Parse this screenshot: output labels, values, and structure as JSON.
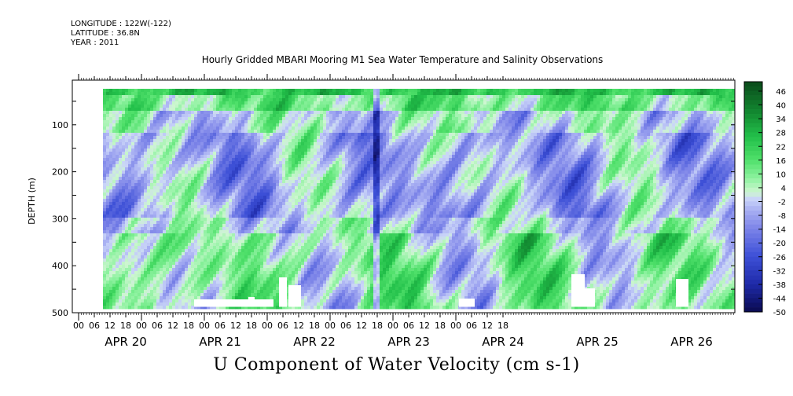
{
  "header": {
    "longitude": "LONGITUDE : 122W(-122)",
    "latitude": "LATITUDE : 36.8N",
    "year": "YEAR : 2011",
    "title": "Hourly Gridded MBARI Mooring M1 Sea Water Temperature and Salinity Observations"
  },
  "chart_data": {
    "type": "heatmap",
    "title": "Hourly Gridded MBARI Mooring M1 Sea Water Temperature and Salinity Observations",
    "xlabel": "U Component of Water Velocity (cm s-1)",
    "ylabel": "DEPTH (m)",
    "ylim": [
      500,
      0
    ],
    "y_ticks": [
      100,
      200,
      300,
      400,
      500
    ],
    "x_hour_ticks": [
      "00",
      "06",
      "12",
      "18",
      "00",
      "06",
      "12",
      "18",
      "00",
      "06",
      "12",
      "18",
      "00",
      "06",
      "12",
      "18",
      "00",
      "06",
      "12",
      "18",
      "00",
      "06",
      "12",
      "18",
      "00",
      "06",
      "12",
      "18"
    ],
    "x_day_labels": [
      "APR 20",
      "APR 21",
      "APR 22",
      "APR 23",
      "APR 24",
      "APR 25",
      "APR 26"
    ],
    "colorbar_levels": [
      "46",
      "40",
      "34",
      "28",
      "22",
      "16",
      "10",
      "4",
      "-2",
      "-8",
      "-14",
      "-20",
      "-26",
      "-32",
      "-38",
      "-44",
      "-50"
    ],
    "colorbar_range": [
      -50,
      50
    ],
    "colors": {
      "strong_negative": "#10105a",
      "negative": "#8f95ec",
      "near_zero": "#c9d6f8",
      "positive": "#8ef2a0",
      "strong_positive": "#0c4a1c",
      "missing": "#ffffff"
    }
  }
}
